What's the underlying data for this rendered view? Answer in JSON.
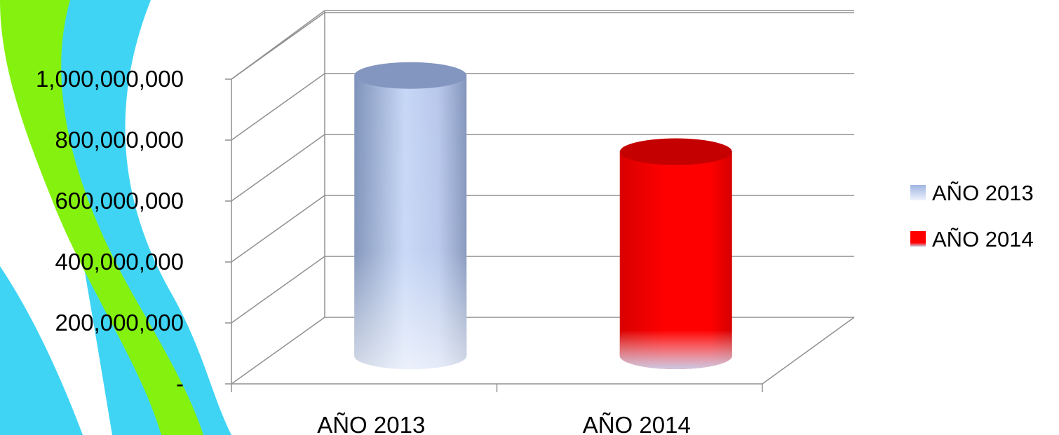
{
  "chart_data": {
    "type": "bar",
    "title": "",
    "xlabel": "",
    "ylabel": "",
    "categories": [
      "AÑO 2013",
      "AÑO 2014"
    ],
    "values": [
      920000000,
      670000000
    ],
    "ylim": [
      0,
      1000000000
    ],
    "y_ticks": [
      {
        "value": 0,
        "label": "-"
      },
      {
        "value": 200000000,
        "label": "200,000,000"
      },
      {
        "value": 400000000,
        "label": "400,000,000"
      },
      {
        "value": 600000000,
        "label": "600,000,000"
      },
      {
        "value": 800000000,
        "label": "800,000,000"
      },
      {
        "value": 1000000000,
        "label": "1,000,000,000"
      }
    ],
    "bar_shape": "cylinder",
    "three_d": true,
    "grid": true,
    "legend": {
      "position": "right",
      "entries": [
        {
          "label": "AÑO 2013",
          "color": "#aec3ee"
        },
        {
          "label": "AÑO 2014",
          "color": "#ee1111"
        }
      ]
    },
    "colors": [
      "#aec3ee",
      "#ff0000"
    ]
  }
}
